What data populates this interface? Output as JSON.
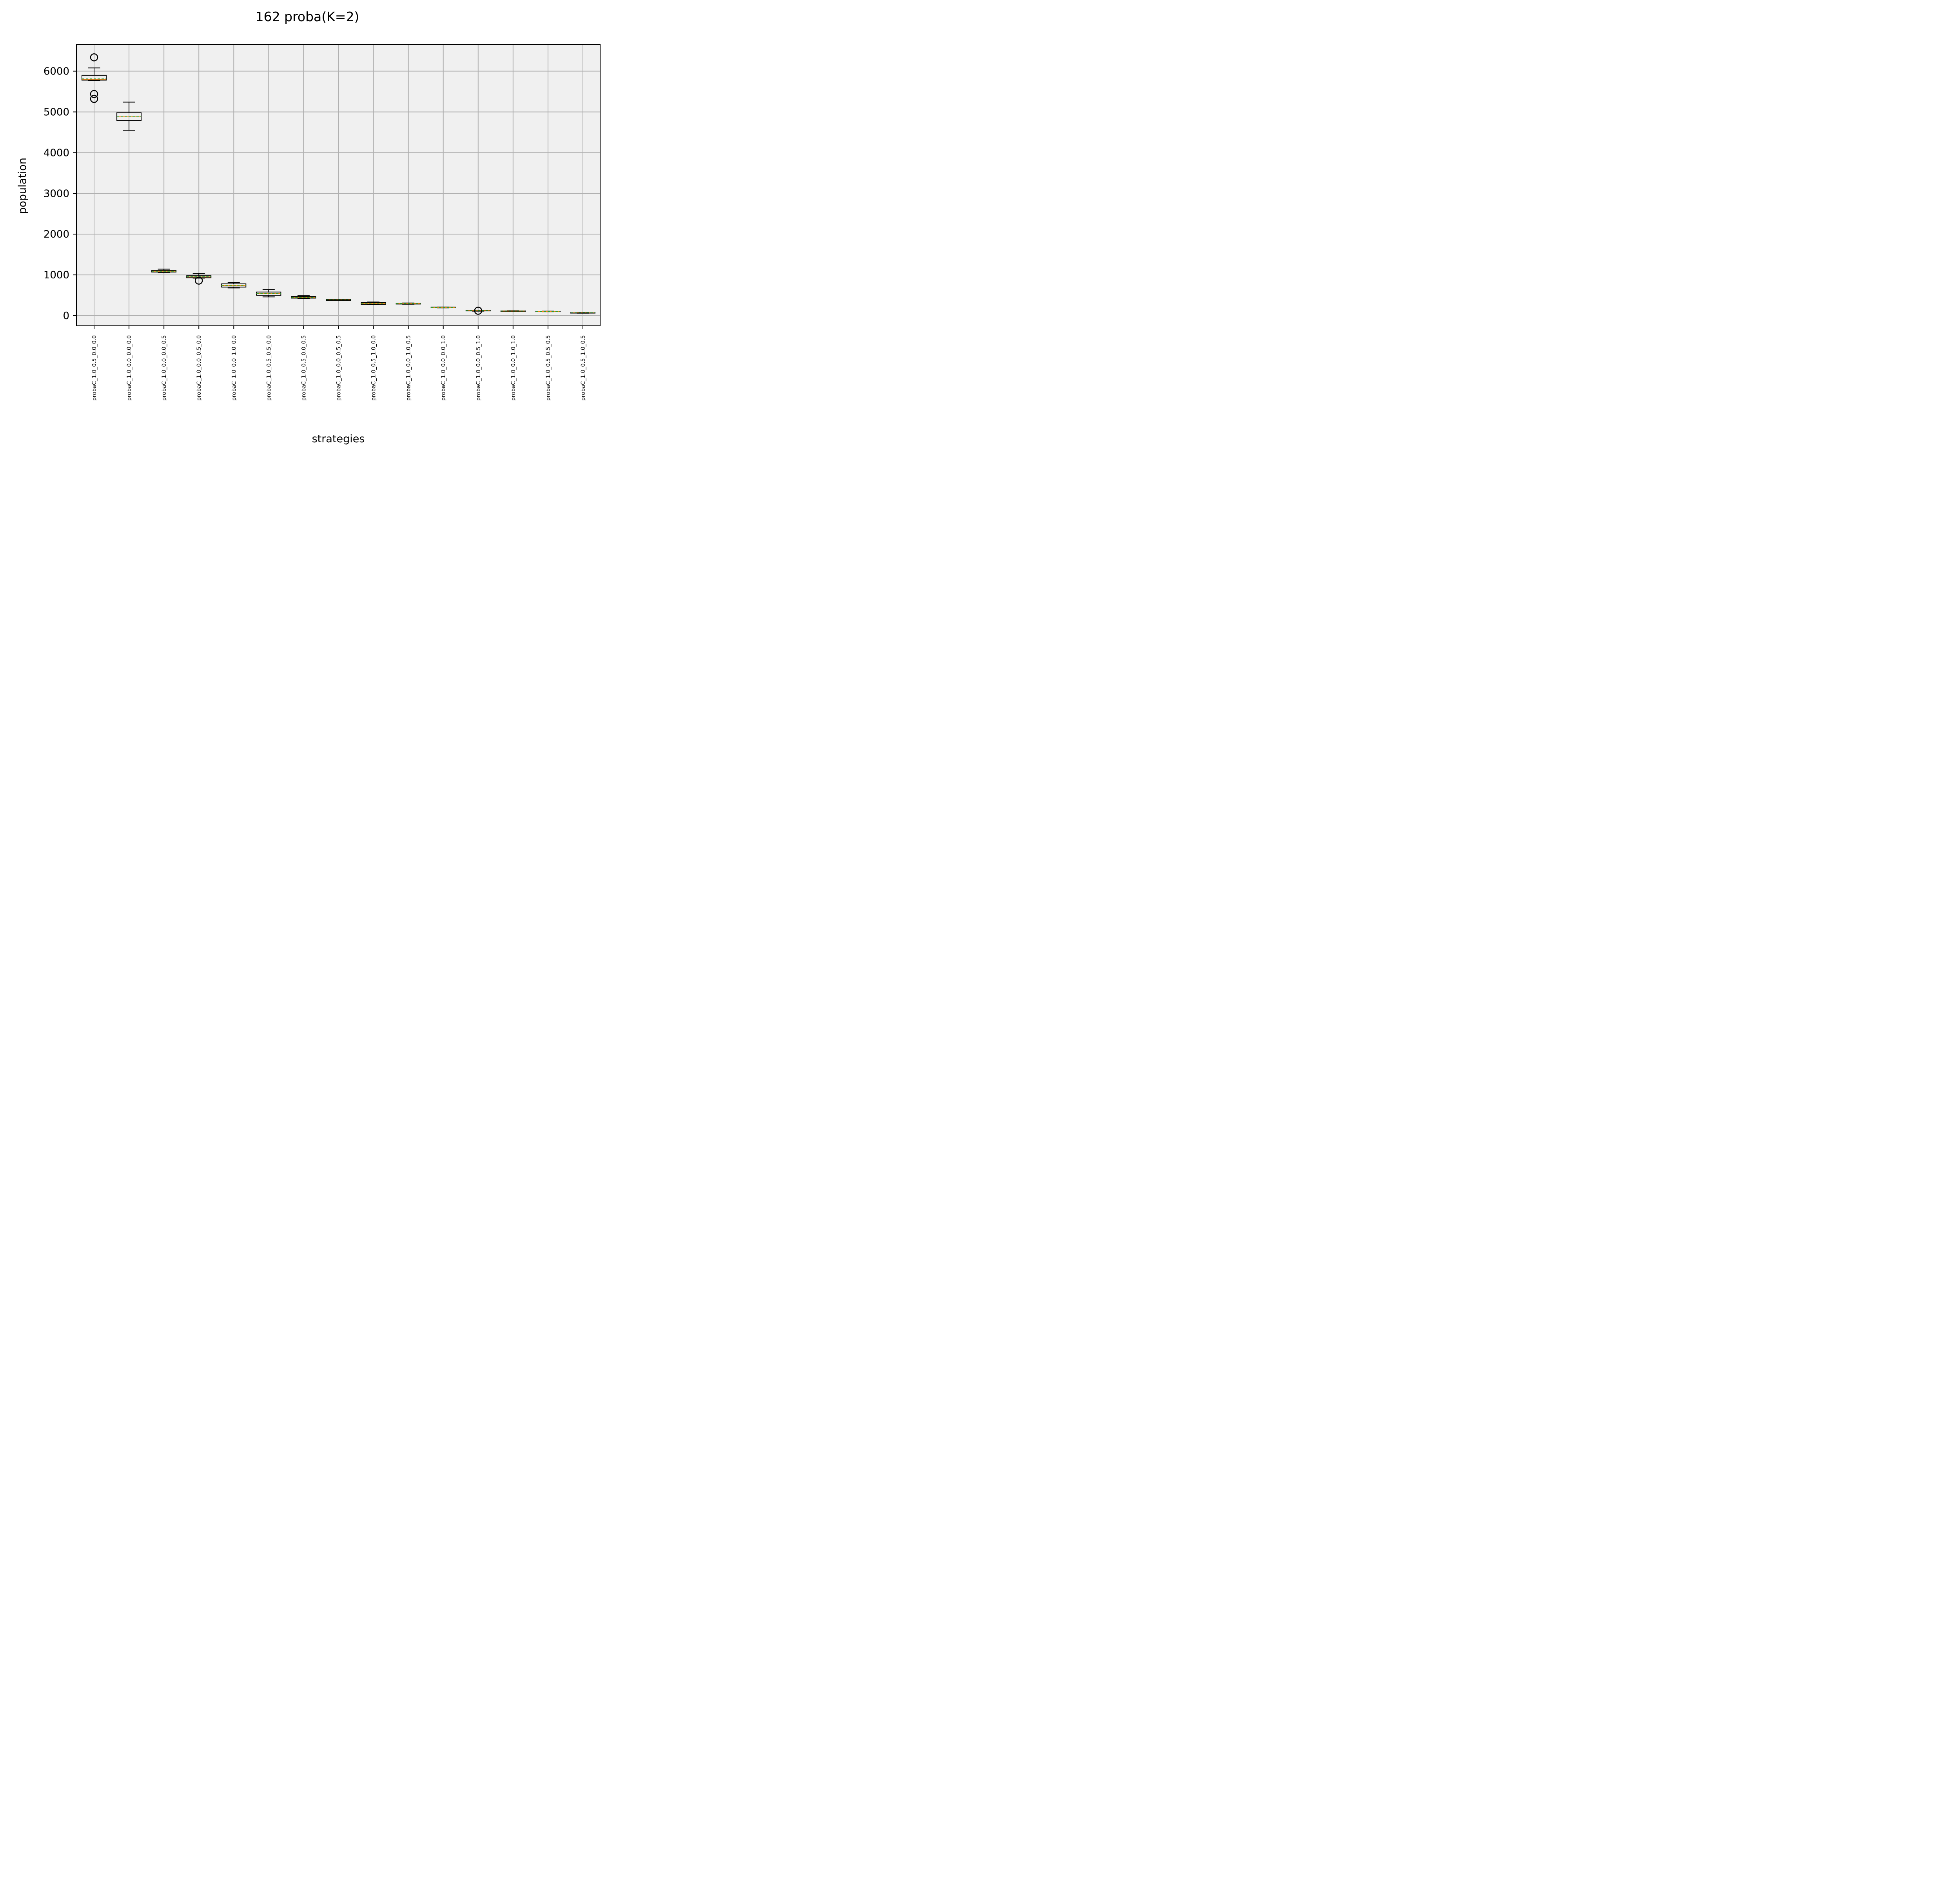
{
  "chart_data": {
    "type": "box",
    "title": "162 proba(K=2)",
    "xlabel": "strategies",
    "ylabel": "population",
    "ylim": [
      -250,
      6650
    ],
    "yticks": [
      0,
      1000,
      2000,
      3000,
      4000,
      5000,
      6000
    ],
    "ytick_labels": [
      "0",
      "1000",
      "2000",
      "3000",
      "4000",
      "5000",
      "6000"
    ],
    "grid": true,
    "background": "#f0f0f0",
    "colors": {
      "box": "#000000",
      "median": "#ff7f0e",
      "mean": "#2ca02c",
      "grid": "#b0b0b0"
    },
    "categories": [
      "probaC_1.0_0.5_0.0_0.0",
      "probaC_1.0_0.0_0.0_0.0",
      "probaC_1.0_0.0_0.0_0.5",
      "probaC_1.0_0.0_0.5_0.0",
      "probaC_1.0_0.0_1.0_0.0",
      "probaC_1.0_0.5_0.5_0.0",
      "probaC_1.0_0.5_0.0_0.5",
      "probaC_1.0_0.0_0.5_0.5",
      "probaC_1.0_0.5_1.0_0.0",
      "probaC_1.0_0.0_1.0_0.5",
      "probaC_1.0_0.0_0.0_1.0",
      "probaC_1.0_0.0_0.5_1.0",
      "probaC_1.0_0.0_1.0_1.0",
      "probaC_1.0_0.5_0.5_0.5",
      "probaC_1.0_0.5_1.0_0.5"
    ],
    "boxes": [
      {
        "whislo": 5770,
        "q1": 5780,
        "median": 5800,
        "mean": 5810,
        "q3": 5900,
        "whishi": 6080,
        "fliers": [
          6340,
          5440,
          5320
        ]
      },
      {
        "whislo": 4550,
        "q1": 4790,
        "median": 4880,
        "mean": 4880,
        "q3": 4980,
        "whishi": 5240,
        "fliers": []
      },
      {
        "whislo": 1060,
        "q1": 1070,
        "median": 1090,
        "mean": 1090,
        "q3": 1110,
        "whishi": 1140,
        "fliers": []
      },
      {
        "whislo": 920,
        "q1": 930,
        "median": 950,
        "mean": 955,
        "q3": 980,
        "whishi": 1040,
        "fliers": [
          860
        ]
      },
      {
        "whislo": 680,
        "q1": 700,
        "median": 740,
        "mean": 745,
        "q3": 780,
        "whishi": 810,
        "fliers": []
      },
      {
        "whislo": 460,
        "q1": 500,
        "median": 540,
        "mean": 545,
        "q3": 580,
        "whishi": 640,
        "fliers": []
      },
      {
        "whislo": 420,
        "q1": 430,
        "median": 450,
        "mean": 450,
        "q3": 470,
        "whishi": 490,
        "fliers": []
      },
      {
        "whislo": 370,
        "q1": 375,
        "median": 385,
        "mean": 385,
        "q3": 395,
        "whishi": 400,
        "fliers": []
      },
      {
        "whislo": 270,
        "q1": 275,
        "median": 300,
        "mean": 305,
        "q3": 325,
        "whishi": 335,
        "fliers": []
      },
      {
        "whislo": 280,
        "q1": 285,
        "median": 295,
        "mean": 295,
        "q3": 305,
        "whishi": 310,
        "fliers": []
      },
      {
        "whislo": 190,
        "q1": 195,
        "median": 200,
        "mean": 200,
        "q3": 208,
        "whishi": 212,
        "fliers": []
      },
      {
        "whislo": 110,
        "q1": 115,
        "median": 120,
        "mean": 120,
        "q3": 125,
        "whishi": 130,
        "fliers": [
          120
        ]
      },
      {
        "whislo": 105,
        "q1": 108,
        "median": 112,
        "mean": 112,
        "q3": 116,
        "whishi": 120,
        "fliers": []
      },
      {
        "whislo": 95,
        "q1": 98,
        "median": 102,
        "mean": 102,
        "q3": 106,
        "whishi": 110,
        "fliers": []
      },
      {
        "whislo": 60,
        "q1": 63,
        "median": 68,
        "mean": 68,
        "q3": 72,
        "whishi": 76,
        "fliers": []
      }
    ]
  }
}
